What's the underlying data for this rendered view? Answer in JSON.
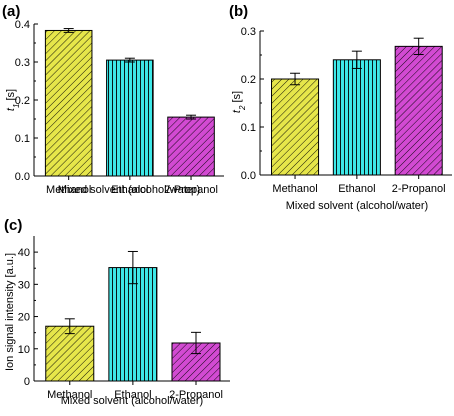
{
  "colors": {
    "methanol": "#e6e64a",
    "ethanol": "#3ee8e8",
    "propanol": "#d24ad2",
    "axis": "#000000"
  },
  "chart_data": [
    {
      "type": "bar",
      "panel": "(a)",
      "categories": [
        "Methanol",
        "Ethanol",
        "2-Propanol"
      ],
      "values": [
        0.383,
        0.305,
        0.155
      ],
      "errors": [
        0.005,
        0.005,
        0.005
      ],
      "patterns": [
        "diag",
        "vert",
        "diag"
      ],
      "xlabel": "Mixed solvent (alcohol/water)",
      "ylabel_main": "t",
      "ylabel_sub": "1",
      "ylabel_unit": " [s]",
      "ylim": [
        0,
        0.4
      ],
      "yticks": [
        0.0,
        0.1,
        0.2,
        0.3,
        0.4
      ],
      "ytick_labels": [
        "0.0",
        "0.1",
        "0.2",
        "0.3",
        "0.4"
      ]
    },
    {
      "type": "bar",
      "panel": "(b)",
      "categories": [
        "Methanol",
        "Ethanol",
        "2-Propanol"
      ],
      "values": [
        0.2,
        0.24,
        0.268
      ],
      "errors": [
        0.012,
        0.018,
        0.017
      ],
      "patterns": [
        "diag",
        "vert",
        "diag"
      ],
      "xlabel": "Mixed solvent (alcohol/water)",
      "ylabel_main": "t",
      "ylabel_sub": "2",
      "ylabel_unit": " [s]",
      "ylim": [
        0,
        0.3
      ],
      "yticks": [
        0.0,
        0.1,
        0.2,
        0.3
      ],
      "ytick_labels": [
        "0.0",
        "0.1",
        "0.2",
        "0.3"
      ]
    },
    {
      "type": "bar",
      "panel": "(c)",
      "categories": [
        "Methanol",
        "Ethanol",
        "2-Propanol"
      ],
      "values": [
        17,
        35.2,
        11.8
      ],
      "errors": [
        2.3,
        5.0,
        3.3
      ],
      "patterns": [
        "diag",
        "vert",
        "diag"
      ],
      "xlabel": "Mixed solvent (alcohol/water)",
      "ylabel_main": "Ion signal intensity [a.u.]",
      "ylabel_sub": "",
      "ylabel_unit": "",
      "ylim": [
        0,
        45
      ],
      "yticks": [
        0,
        10,
        20,
        30,
        40
      ],
      "ytick_labels": [
        "0",
        "10",
        "20",
        "30",
        "40"
      ]
    }
  ]
}
